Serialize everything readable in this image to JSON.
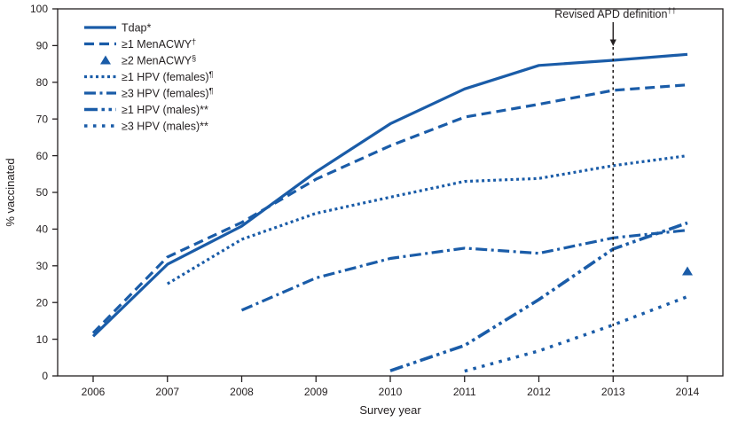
{
  "colors": {
    "line": "#1A5CA8",
    "axis": "#231F20",
    "background": "#FFFFFF"
  },
  "annotation": {
    "text": "Revised APD definition",
    "sup": "††",
    "year": 2013
  },
  "chart_data": {
    "type": "line",
    "title": "",
    "xlabel": "Survey year",
    "ylabel": "% vaccinated",
    "x": [
      2006,
      2007,
      2008,
      2009,
      2010,
      2011,
      2012,
      2013,
      2014
    ],
    "ylim": [
      0,
      100
    ],
    "yticks": [
      0,
      10,
      20,
      30,
      40,
      50,
      60,
      70,
      80,
      90,
      100
    ],
    "grid": false,
    "legend_position": "top-left",
    "series": [
      {
        "name": "Tdap*",
        "label": "Tdap*",
        "sup": "",
        "style": "solid",
        "values": [
          10.8,
          30.4,
          40.8,
          55.6,
          68.7,
          78.2,
          84.6,
          86.0,
          87.6
        ]
      },
      {
        "name": "≥1 MenACWY†",
        "label": "≥1 MenACWY",
        "sup": "†",
        "style": "dashed",
        "values": [
          11.7,
          32.4,
          41.8,
          53.6,
          62.7,
          70.5,
          74.0,
          77.8,
          79.3
        ]
      },
      {
        "name": "≥2 MenACWY§",
        "label": "≥2 MenACWY",
        "sup": "§",
        "style": "triangle",
        "values": [
          null,
          null,
          null,
          null,
          null,
          null,
          null,
          null,
          28.5
        ]
      },
      {
        "name": "≥1 HPV (females)¶",
        "label": "≥1 HPV (females)",
        "sup": "¶",
        "style": "dotted",
        "values": [
          null,
          25.1,
          37.2,
          44.3,
          48.7,
          53.0,
          53.8,
          57.3,
          60.0
        ]
      },
      {
        "name": "≥3 HPV (females)¶",
        "label": "≥3 HPV (females)",
        "sup": "¶",
        "style": "dashdot",
        "values": [
          null,
          null,
          17.9,
          26.7,
          32.0,
          34.8,
          33.4,
          37.6,
          39.7
        ]
      },
      {
        "name": "≥1 HPV (males)**",
        "label": "≥1 HPV (males)**",
        "sup": "",
        "style": "dashdotdot",
        "values": [
          null,
          null,
          null,
          null,
          1.4,
          8.3,
          20.8,
          34.6,
          41.7
        ]
      },
      {
        "name": "≥3 HPV (males)**",
        "label": "≥3 HPV (males)**",
        "sup": "",
        "style": "sparsedot",
        "values": [
          null,
          null,
          null,
          null,
          null,
          1.3,
          6.8,
          13.9,
          21.6
        ]
      }
    ]
  }
}
